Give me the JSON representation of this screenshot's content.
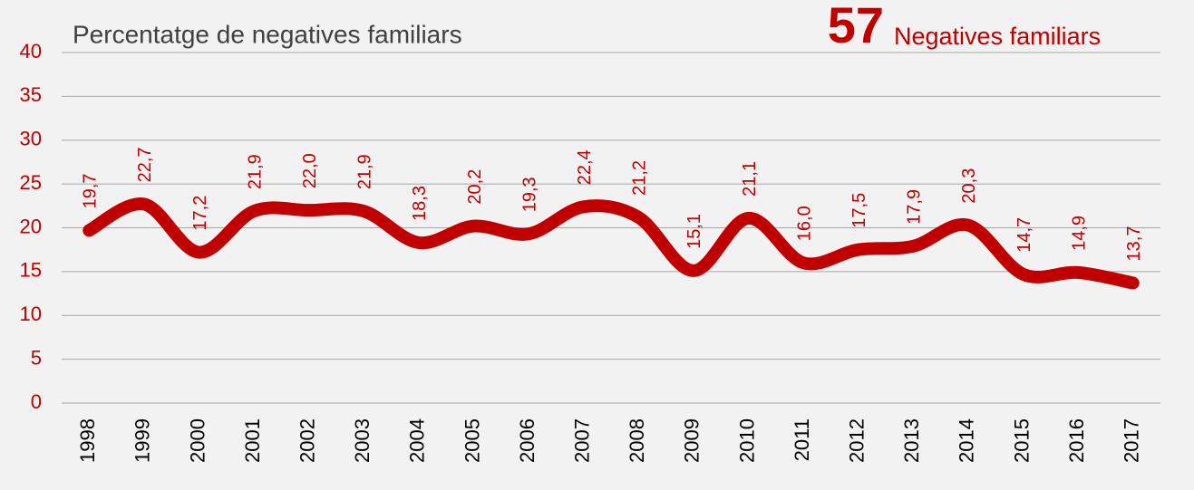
{
  "chart_data": {
    "type": "line",
    "title": "Percentatge de negatives familiars",
    "annotation": {
      "value": 57,
      "text": "Negatives familiars"
    },
    "categories": [
      "1998",
      "1999",
      "2000",
      "2001",
      "2002",
      "2003",
      "2004",
      "2005",
      "2006",
      "2007",
      "2008",
      "2009",
      "2010",
      "2011",
      "2012",
      "2013",
      "2014",
      "2015",
      "2016",
      "2017"
    ],
    "values": [
      19.7,
      22.7,
      17.2,
      21.9,
      22.0,
      21.9,
      18.3,
      20.2,
      19.3,
      22.4,
      21.2,
      15.1,
      21.1,
      16.0,
      17.5,
      17.9,
      20.3,
      14.7,
      14.9,
      13.7
    ],
    "value_labels": [
      "19,7",
      "22,7",
      "17,2",
      "21,9",
      "22,0",
      "21,9",
      "18,3",
      "20,2",
      "19,3",
      "22,4",
      "21,2",
      "15,1",
      "21,1",
      "16,0",
      "17,5",
      "17,9",
      "20,3",
      "14,7",
      "14,9",
      "13,7"
    ],
    "color": "#c00000",
    "ylim": [
      0,
      40
    ],
    "yticks": [
      0,
      5,
      10,
      15,
      20,
      25,
      30,
      35,
      40
    ],
    "grid": true,
    "smooth": true
  }
}
